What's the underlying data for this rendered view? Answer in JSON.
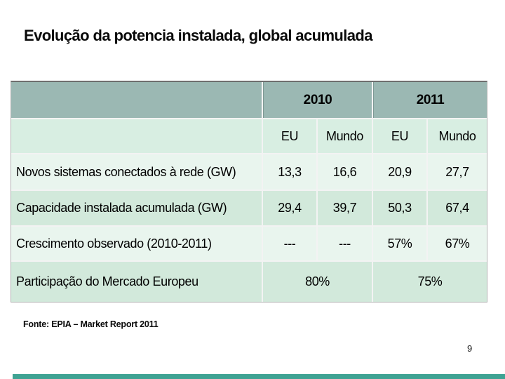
{
  "slide": {
    "title": "Evolução da potencia instalada, global acumulada",
    "source_note": "Fonte: EPIA – Market Report 2011",
    "page_number": "9"
  },
  "table": {
    "col_groups": [
      {
        "label": "2010"
      },
      {
        "label": "2011"
      }
    ],
    "sub_headers": [
      "EU",
      "Mundo",
      "EU",
      "Mundo"
    ],
    "rows": [
      {
        "label": "Novos sistemas conectados à rede (GW)",
        "values": [
          "13,3",
          "16,6",
          "20,9",
          "27,7"
        ]
      },
      {
        "label": "Capacidade instalada acumulada (GW)",
        "values": [
          "29,4",
          "39,7",
          "50,3",
          "67,4"
        ]
      },
      {
        "label": "Crescimento observado (2010-2011)",
        "values": [
          "---",
          "---",
          "57%",
          "67%"
        ]
      },
      {
        "label": "Participação do Mercado Europeu",
        "values": [
          "80%",
          "75%"
        ],
        "merged": true
      }
    ]
  },
  "colors": {
    "accent_bar": "#3fa393",
    "table_year_header_bg": "#9bb8b3",
    "table_subheader_bg": "#d8eee2",
    "row_light_bg": "#e9f5ee",
    "row_dark_bg": "#d2e9db"
  }
}
